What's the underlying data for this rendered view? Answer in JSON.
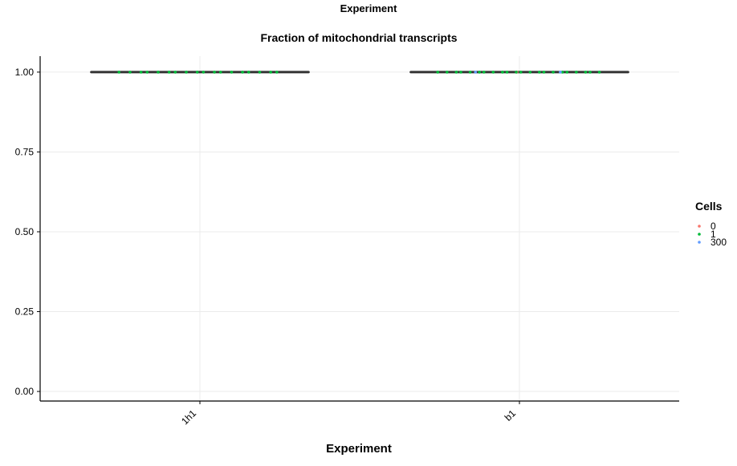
{
  "chart_data": {
    "type": "scatter",
    "supertitle": "Experiment",
    "title": "Fraction of mitochondrial transcripts",
    "xlabel": "Experiment",
    "ylabel": "",
    "categories": [
      "1h1",
      "b1"
    ],
    "ylim": [
      -0.03,
      1.05
    ],
    "yticks": [
      0.0,
      0.25,
      0.5,
      0.75,
      1.0
    ],
    "ytick_labels": [
      "0.00",
      "0.25",
      "0.50",
      "0.75",
      "1.00"
    ],
    "grid": true,
    "legend": {
      "title": "Cells",
      "placement": "right",
      "entries": [
        {
          "label": "0",
          "color": "#F8766D"
        },
        {
          "label": "1",
          "color": "#00BA38"
        },
        {
          "label": "300",
          "color": "#619CFF"
        }
      ]
    },
    "boxes": [
      {
        "category": "1h1",
        "median": 1.0,
        "q1": 1.0,
        "q3": 1.0,
        "whisker_low": 1.0,
        "whisker_high": 1.0
      },
      {
        "category": "b1",
        "median": 1.0,
        "q1": 1.0,
        "q3": 1.0,
        "whisker_low": 1.0,
        "whisker_high": 1.0
      }
    ],
    "series": [
      {
        "name": "0",
        "color": "#F8766D",
        "points": [
          {
            "category": "b1",
            "y": 1.0
          }
        ]
      },
      {
        "name": "1",
        "color": "#00BA38",
        "points": [
          {
            "category": "1h1",
            "y": 1.0
          },
          {
            "category": "1h1",
            "y": 1.0
          },
          {
            "category": "1h1",
            "y": 1.0
          },
          {
            "category": "1h1",
            "y": 1.0
          },
          {
            "category": "1h1",
            "y": 1.0
          },
          {
            "category": "1h1",
            "y": 1.0
          },
          {
            "category": "1h1",
            "y": 1.0
          },
          {
            "category": "1h1",
            "y": 1.0
          },
          {
            "category": "1h1",
            "y": 1.0
          },
          {
            "category": "1h1",
            "y": 1.0
          },
          {
            "category": "1h1",
            "y": 1.0
          },
          {
            "category": "1h1",
            "y": 1.0
          },
          {
            "category": "1h1",
            "y": 1.0
          },
          {
            "category": "1h1",
            "y": 1.0
          },
          {
            "category": "1h1",
            "y": 1.0
          },
          {
            "category": "1h1",
            "y": 1.0
          },
          {
            "category": "1h1",
            "y": 1.0
          },
          {
            "category": "1h1",
            "y": 1.0
          },
          {
            "category": "b1",
            "y": 1.0
          },
          {
            "category": "b1",
            "y": 1.0
          },
          {
            "category": "b1",
            "y": 1.0
          },
          {
            "category": "b1",
            "y": 1.0
          },
          {
            "category": "b1",
            "y": 1.0
          },
          {
            "category": "b1",
            "y": 1.0
          },
          {
            "category": "b1",
            "y": 1.0
          },
          {
            "category": "b1",
            "y": 1.0
          },
          {
            "category": "b1",
            "y": 1.0
          },
          {
            "category": "b1",
            "y": 1.0
          },
          {
            "category": "b1",
            "y": 1.0
          },
          {
            "category": "b1",
            "y": 1.0
          },
          {
            "category": "b1",
            "y": 1.0
          },
          {
            "category": "b1",
            "y": 1.0
          },
          {
            "category": "b1",
            "y": 1.0
          },
          {
            "category": "b1",
            "y": 1.0
          },
          {
            "category": "b1",
            "y": 1.0
          },
          {
            "category": "b1",
            "y": 1.0
          },
          {
            "category": "b1",
            "y": 1.0
          },
          {
            "category": "b1",
            "y": 1.0
          },
          {
            "category": "b1",
            "y": 1.0
          },
          {
            "category": "b1",
            "y": 1.0
          }
        ]
      },
      {
        "name": "300",
        "color": "#619CFF",
        "points": [
          {
            "category": "b1",
            "y": 1.0
          },
          {
            "category": "b1",
            "y": 1.0
          }
        ]
      }
    ]
  }
}
